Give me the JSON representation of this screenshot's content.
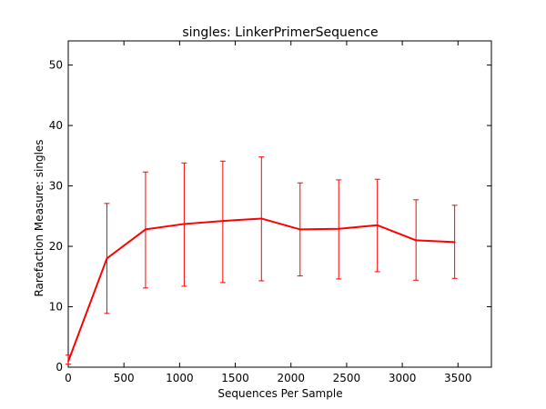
{
  "chart_data": {
    "type": "line",
    "title": "singles: LinkerPrimerSequence",
    "xlabel": "Sequences Per Sample",
    "ylabel": "Rarefaction Measure: singles",
    "xlim": [
      0,
      3800
    ],
    "ylim": [
      0,
      54
    ],
    "x_ticks": [
      0,
      500,
      1000,
      1500,
      2000,
      2500,
      3000,
      3500
    ],
    "y_ticks": [
      0,
      10,
      20,
      30,
      40,
      50
    ],
    "grid": false,
    "legend": "none",
    "colors": {
      "series": "#ff0000",
      "axis": "#000000",
      "background": "#ffffff"
    },
    "series": [
      {
        "x": [
          1,
          347,
          694,
          1041,
          1388,
          1735,
          2082,
          2429,
          2776,
          3123,
          3470
        ],
        "y": [
          1.0,
          18.0,
          22.8,
          23.7,
          24.2,
          24.6,
          22.8,
          22.9,
          23.5,
          21.0,
          20.7
        ],
        "err_lo": [
          0.5,
          8.9,
          13.1,
          13.4,
          14.0,
          14.3,
          15.1,
          14.6,
          15.8,
          14.4,
          14.7
        ],
        "err_hi": [
          2.0,
          27.1,
          32.3,
          33.8,
          34.1,
          34.8,
          30.5,
          31.0,
          31.1,
          27.7,
          26.8
        ]
      }
    ]
  }
}
